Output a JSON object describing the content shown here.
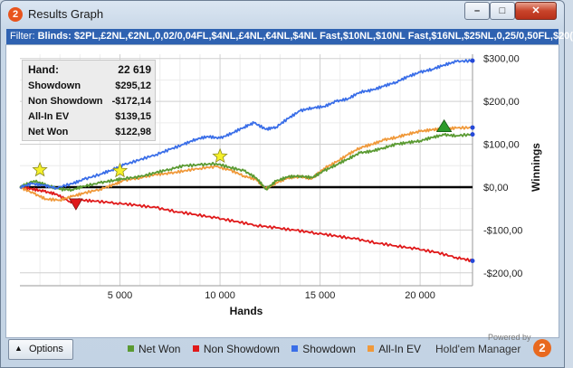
{
  "window": {
    "title": "Results Graph",
    "app_icon_label": "2"
  },
  "filter": {
    "label": "Filter:",
    "value": "Blinds: $2PL,£2NL,€2NL,0,02/0,04FL,$4NL,£4NL,€4NL,$4NL Fast,$10NL,$10NL Fast,$16NL,$25NL,0,25/0,50FL,$20("
  },
  "summary": {
    "hands_label": "Hand:",
    "hands_value": "22 619",
    "showdown_label": "Showdown",
    "showdown_value": "$295,12",
    "non_showdown_label": "Non Showdown",
    "non_showdown_value": "-$172,14",
    "allin_label": "All-In EV",
    "allin_value": "$139,15",
    "netwon_label": "Net Won",
    "netwon_value": "$122,98"
  },
  "footer": {
    "options_label": "Options",
    "powered_by": "Powered by",
    "brand": "Hold'em Manager",
    "brand_logo": "2"
  },
  "colors": {
    "net_won": "#5a9a32",
    "non_showdown": "#e0191a",
    "showdown": "#3a6ee8",
    "allin_ev": "#f0993a"
  },
  "chart_data": {
    "type": "line",
    "xlabel": "Hands",
    "ylabel": "Winnings",
    "xlim": [
      0,
      22619
    ],
    "ylim": [
      -230,
      310
    ],
    "x_ticks": [
      5000,
      10000,
      15000,
      20000
    ],
    "x_tick_labels": [
      "5 000",
      "10 000",
      "15 000",
      "20 000"
    ],
    "y_ticks": [
      300,
      200,
      100,
      0,
      -100,
      -200
    ],
    "y_tick_labels": [
      "$300,00",
      "$200,00",
      "$100,00",
      "$0,00",
      "-$100,00",
      "-$200,00"
    ],
    "grid": true,
    "legend_position": "bottom",
    "series": [
      {
        "name": "Net Won",
        "color": "#5a9a32",
        "x": [
          0,
          700,
          1300,
          2000,
          2600,
          3200,
          4000,
          4700,
          5200,
          6000,
          6800,
          7500,
          8200,
          9000,
          9800,
          10500,
          11200,
          11800,
          12300,
          12800,
          13400,
          14000,
          14600,
          15200,
          15800,
          16400,
          17000,
          17600,
          18200,
          18800,
          19400,
          20000,
          20600,
          21200,
          21800,
          22619
        ],
        "y": [
          0,
          15,
          5,
          -5,
          -6,
          2,
          10,
          16,
          20,
          24,
          34,
          42,
          50,
          52,
          55,
          46,
          38,
          22,
          -5,
          14,
          24,
          26,
          22,
          38,
          52,
          66,
          80,
          84,
          92,
          100,
          104,
          108,
          116,
          122,
          120,
          123
        ]
      },
      {
        "name": "Non Showdown",
        "color": "#e0191a",
        "x": [
          0,
          600,
          1200,
          1800,
          2500,
          3000,
          3800,
          4800,
          5800,
          6800,
          7800,
          8800,
          9800,
          10800,
          11800,
          12800,
          13800,
          14800,
          15800,
          16800,
          17800,
          18800,
          19800,
          20800,
          21800,
          22619
        ],
        "y": [
          0,
          -4,
          -10,
          -16,
          -34,
          -30,
          -33,
          -37,
          -42,
          -48,
          -57,
          -64,
          -72,
          -80,
          -89,
          -95,
          -101,
          -107,
          -114,
          -121,
          -130,
          -137,
          -144,
          -152,
          -164,
          -172
        ]
      },
      {
        "name": "Showdown",
        "color": "#3a6ee8",
        "x": [
          0,
          600,
          1200,
          1800,
          2600,
          3200,
          4000,
          4600,
          5200,
          6000,
          6800,
          7500,
          8200,
          8800,
          9400,
          10000,
          10600,
          11200,
          11700,
          12300,
          12800,
          13400,
          14000,
          14600,
          15200,
          15800,
          16400,
          17000,
          17600,
          18200,
          18800,
          19400,
          20000,
          20600,
          21200,
          21800,
          22619
        ],
        "y": [
          0,
          8,
          4,
          -2,
          8,
          18,
          30,
          40,
          52,
          64,
          76,
          88,
          100,
          112,
          118,
          114,
          126,
          140,
          150,
          135,
          140,
          160,
          178,
          185,
          188,
          200,
          206,
          222,
          226,
          236,
          245,
          258,
          268,
          275,
          285,
          293,
          295
        ]
      },
      {
        "name": "All-In EV",
        "color": "#f0993a",
        "x": [
          0,
          700,
          1300,
          2000,
          2600,
          3200,
          4000,
          4700,
          5200,
          6000,
          6800,
          7500,
          8200,
          9000,
          9800,
          10500,
          11200,
          11800,
          12300,
          12800,
          13400,
          14000,
          14600,
          15200,
          15800,
          16400,
          17000,
          17600,
          18200,
          18800,
          19400,
          20000,
          20600,
          21200,
          21800,
          22619
        ],
        "y": [
          0,
          -15,
          -28,
          -30,
          -22,
          -14,
          -5,
          6,
          16,
          22,
          30,
          32,
          38,
          44,
          48,
          40,
          26,
          18,
          -4,
          10,
          22,
          24,
          20,
          44,
          58,
          76,
          92,
          100,
          110,
          116,
          124,
          130,
          134,
          136,
          138,
          139
        ]
      }
    ],
    "markers": [
      {
        "type": "star",
        "x": 1000,
        "y": 40
      },
      {
        "type": "star",
        "x": 5000,
        "y": 38
      },
      {
        "type": "star",
        "x": 10000,
        "y": 72
      },
      {
        "type": "down-triangle",
        "x": 2800,
        "y": -40
      },
      {
        "type": "up-triangle",
        "x": 21200,
        "y": 142
      }
    ]
  }
}
